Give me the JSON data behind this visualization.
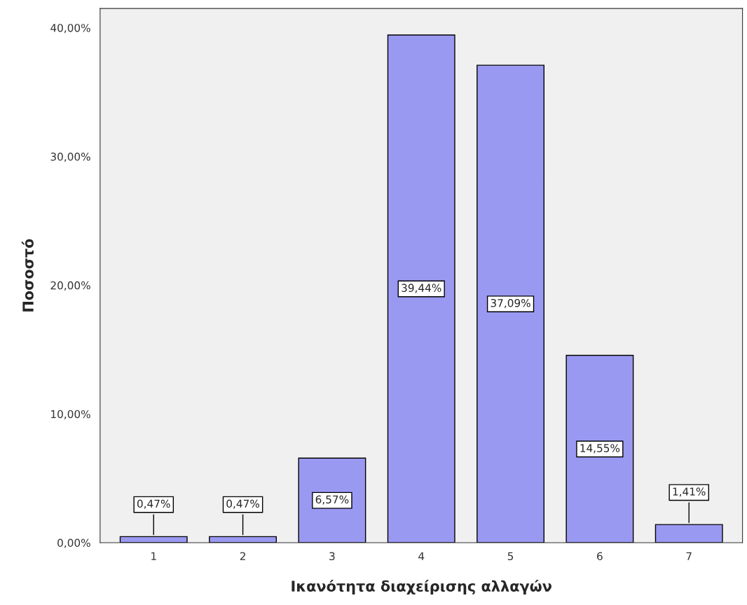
{
  "chart_data": {
    "type": "bar",
    "xlabel": "Ικανότητα διαχείρισης αλλαγών",
    "ylabel": "Ποσοστό",
    "categories": [
      "1",
      "2",
      "3",
      "4",
      "5",
      "6",
      "7"
    ],
    "values": [
      0.47,
      0.47,
      6.57,
      39.44,
      37.09,
      14.55,
      1.41
    ],
    "value_labels": [
      "0,47%",
      "0,47%",
      "6,57%",
      "39,44%",
      "37,09%",
      "14,55%",
      "1,41%"
    ],
    "color": "#9a99f2",
    "ylim": [
      0,
      41.5
    ],
    "yticks": [
      {
        "value": 0,
        "label": "0,00%"
      },
      {
        "value": 10,
        "label": "10,00%"
      },
      {
        "value": 20,
        "label": "20,00%"
      },
      {
        "value": 30,
        "label": "30,00%"
      },
      {
        "value": 40,
        "label": "40,00%"
      }
    ],
    "grid": false,
    "legend": false
  }
}
